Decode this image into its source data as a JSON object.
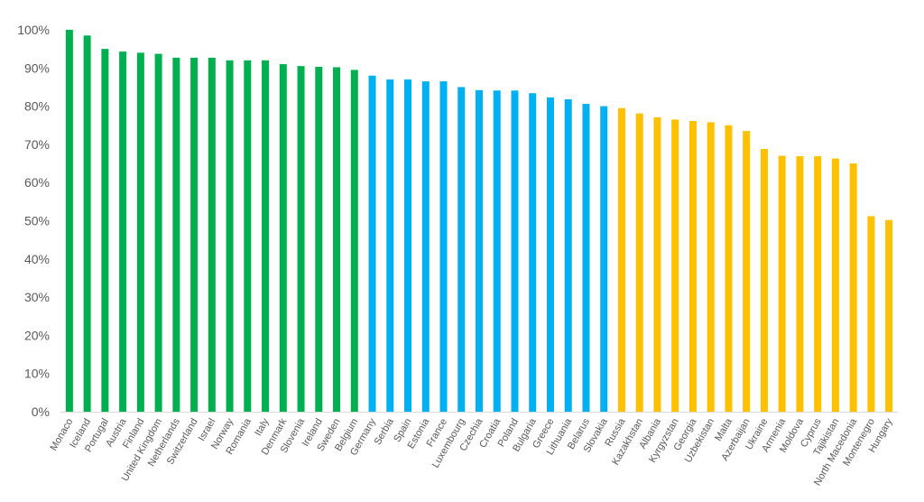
{
  "chart_data": {
    "type": "bar",
    "title": "",
    "xlabel": "",
    "ylabel": "",
    "ylim": [
      0,
      1
    ],
    "y_ticks": [
      "0%",
      "10%",
      "20%",
      "30%",
      "40%",
      "50%",
      "60%",
      "70%",
      "80%",
      "90%",
      "100%"
    ],
    "grid": false,
    "legend": "none",
    "colors": {
      "green": "#00b050",
      "blue": "#00b0f0",
      "yellow": "#ffc000",
      "axis": "#d9d9d9",
      "text": "#595959"
    },
    "categories": [
      "Monaco",
      "Iceland",
      "Portugal",
      "Austria",
      "Finland",
      "United Kingdom",
      "Netherlands",
      "Switzerland",
      "Israel",
      "Norway",
      "Romania",
      "Italy",
      "Denmark",
      "Slovenia",
      "Ireland",
      "Sweden",
      "Belgium",
      "Germany",
      "Serbia",
      "Spain",
      "Estonia",
      "France",
      "Luxembourg",
      "Czechia",
      "Croatia",
      "Poland",
      "Bulgaria",
      "Greece",
      "Lithuania",
      "Belarus",
      "Slovakia",
      "Russia",
      "Kazakhstan",
      "Albania",
      "Kyrgyzstan",
      "Georgia",
      "Uzbekistan",
      "Malta",
      "Azerbaijan",
      "Ukraine",
      "Armenia",
      "Moldova",
      "Cyprus",
      "Tajikistan",
      "North Macedonia",
      "Montenegro",
      "Hungary"
    ],
    "values": [
      1.0,
      0.985,
      0.95,
      0.943,
      0.94,
      0.937,
      0.927,
      0.927,
      0.927,
      0.92,
      0.92,
      0.92,
      0.91,
      0.905,
      0.903,
      0.902,
      0.895,
      0.88,
      0.87,
      0.87,
      0.865,
      0.865,
      0.85,
      0.842,
      0.841,
      0.841,
      0.834,
      0.823,
      0.818,
      0.806,
      0.8,
      0.795,
      0.781,
      0.771,
      0.765,
      0.761,
      0.758,
      0.75,
      0.735,
      0.688,
      0.67,
      0.669,
      0.669,
      0.663,
      0.65,
      0.512,
      0.502
    ],
    "bar_colors": [
      "green",
      "green",
      "green",
      "green",
      "green",
      "green",
      "green",
      "green",
      "green",
      "green",
      "green",
      "green",
      "green",
      "green",
      "green",
      "green",
      "green",
      "blue",
      "blue",
      "blue",
      "blue",
      "blue",
      "blue",
      "blue",
      "blue",
      "blue",
      "blue",
      "blue",
      "blue",
      "blue",
      "blue",
      "yellow",
      "yellow",
      "yellow",
      "yellow",
      "yellow",
      "yellow",
      "yellow",
      "yellow",
      "yellow",
      "yellow",
      "yellow",
      "yellow",
      "yellow",
      "yellow",
      "yellow",
      "yellow"
    ]
  }
}
